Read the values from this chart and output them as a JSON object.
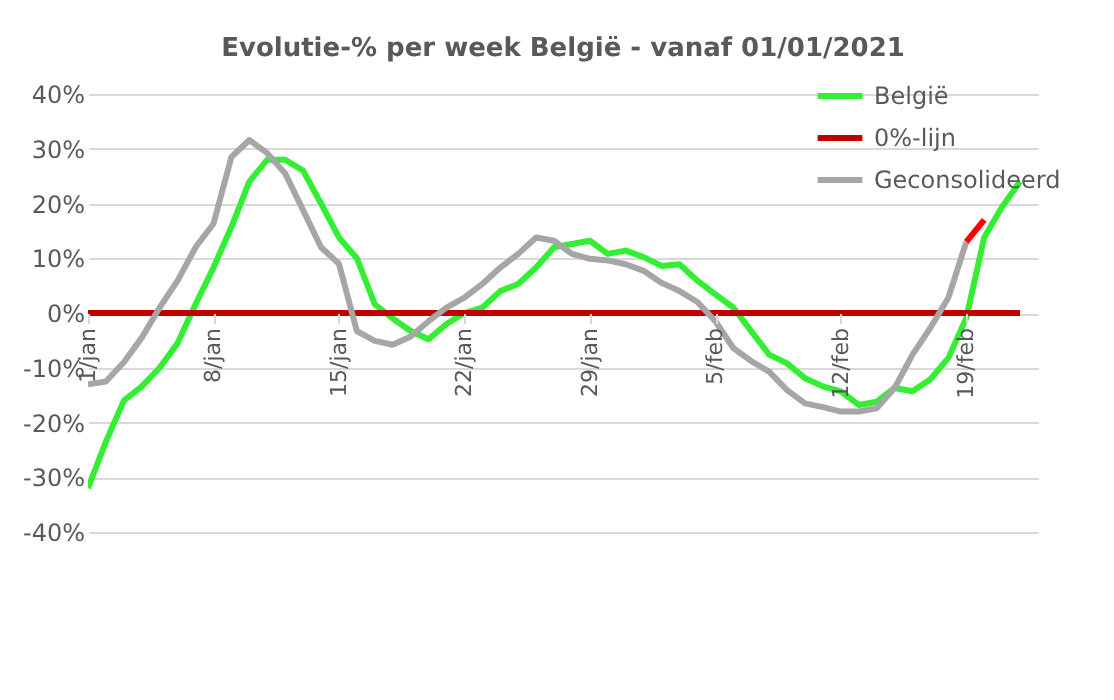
{
  "chart_data": {
    "type": "line",
    "title": "Evolutie-% per week België - vanaf 01/01/2021",
    "x": [
      "2021-01-01",
      "2021-01-02",
      "2021-01-03",
      "2021-01-04",
      "2021-01-05",
      "2021-01-06",
      "2021-01-07",
      "2021-01-08",
      "2021-01-09",
      "2021-01-10",
      "2021-01-11",
      "2021-01-12",
      "2021-01-13",
      "2021-01-14",
      "2021-01-15",
      "2021-01-16",
      "2021-01-17",
      "2021-01-18",
      "2021-01-19",
      "2021-01-20",
      "2021-01-21",
      "2021-01-22",
      "2021-01-23",
      "2021-01-24",
      "2021-01-25",
      "2021-01-26",
      "2021-01-27",
      "2021-01-28",
      "2021-01-29",
      "2021-01-30",
      "2021-01-31",
      "2021-02-01",
      "2021-02-02",
      "2021-02-03",
      "2021-02-04",
      "2021-02-05",
      "2021-02-06",
      "2021-02-07",
      "2021-02-08",
      "2021-02-09",
      "2021-02-10",
      "2021-02-11",
      "2021-02-12",
      "2021-02-13",
      "2021-02-14",
      "2021-02-15",
      "2021-02-16",
      "2021-02-17",
      "2021-02-18",
      "2021-02-19",
      "2021-02-20",
      "2021-02-21",
      "2021-02-22"
    ],
    "series": [
      {
        "name": "België",
        "color": "#33ee33",
        "values": [
          -32,
          -23.5,
          -16,
          -13.4,
          -10,
          -5.5,
          1.6,
          8.3,
          15.7,
          24,
          28,
          28,
          26,
          20,
          13.8,
          10,
          1.6,
          -1,
          -3.3,
          -4.8,
          -2,
          0,
          1,
          4,
          5.3,
          8.3,
          12,
          12.6,
          13.2,
          10.8,
          11.4,
          10.2,
          8.6,
          8.9,
          5.9,
          3.4,
          1,
          -3.3,
          -7.6,
          -9.2,
          -11.9,
          -13.4,
          -14.3,
          -16.8,
          -16.2,
          -13.7,
          -14.3,
          -12.1,
          -8.2,
          -0.9,
          13.8,
          19.4,
          24
        ]
      },
      {
        "name": "0%-lijn",
        "color": "#c00000",
        "x": [
          "2021-01-01",
          "2021-02-22"
        ],
        "values": [
          0,
          0
        ]
      },
      {
        "name": "Geconsolideerd",
        "color": "#a6a6a6",
        "values": [
          -13,
          -12.5,
          -9,
          -4.5,
          1,
          5.9,
          12,
          16.3,
          28.5,
          31.6,
          29.2,
          25.5,
          18.8,
          12,
          9,
          -3.3,
          -5.1,
          -5.8,
          -4.3,
          -1.5,
          1,
          2.8,
          5.3,
          8.3,
          10.8,
          13.8,
          13.2,
          10.8,
          9.9,
          9.6,
          8.9,
          7.7,
          5.5,
          4,
          2,
          -1.5,
          -6.4,
          -8.8,
          -10.7,
          -14.1,
          -16.5,
          -17.2,
          -18,
          -18,
          -17.4,
          -13.7,
          -7.6,
          -2.7,
          2.8,
          13,
          null,
          null,
          null
        ]
      },
      {
        "color": "#ff0000",
        "x": [
          "2021-02-19",
          "2021-02-20"
        ],
        "values": [
          13,
          17
        ]
      }
    ],
    "xlim": [
      "2021-01-01",
      "2021-02-23"
    ],
    "xticks": [
      {
        "value": "2021-01-01",
        "label": "1/jan"
      },
      {
        "value": "2021-01-08",
        "label": "8/jan"
      },
      {
        "value": "2021-01-15",
        "label": "15/jan"
      },
      {
        "value": "2021-01-22",
        "label": "22/jan"
      },
      {
        "value": "2021-01-29",
        "label": "29/jan"
      },
      {
        "value": "2021-02-05",
        "label": "5/feb"
      },
      {
        "value": "2021-02-12",
        "label": "12/feb"
      },
      {
        "value": "2021-02-19",
        "label": "19/feb"
      }
    ],
    "ylim": [
      -40,
      40
    ],
    "yticks": [
      {
        "value": -40,
        "label": "-40%"
      },
      {
        "value": -30,
        "label": "-30%"
      },
      {
        "value": -20,
        "label": "-20%"
      },
      {
        "value": -10,
        "label": "-10%"
      },
      {
        "value": 0,
        "label": "0%"
      },
      {
        "value": 10,
        "label": "10%"
      },
      {
        "value": 20,
        "label": "20%"
      },
      {
        "value": 30,
        "label": "30%"
      },
      {
        "value": 40,
        "label": "40%"
      }
    ],
    "grid": "y",
    "legend": "top right",
    "marker": "none",
    "line_style": "solid"
  }
}
